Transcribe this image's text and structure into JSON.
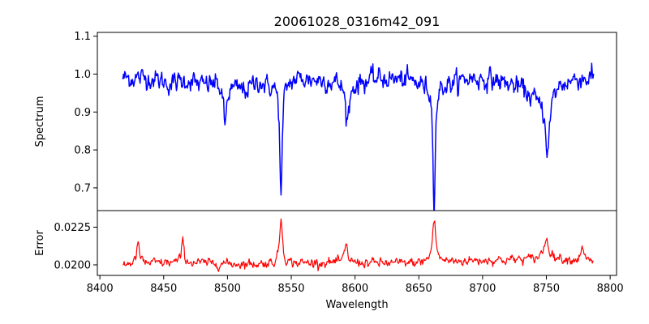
{
  "chart_data": {
    "type": "line",
    "title": "20061028_0316m42_091",
    "xlabel": "Wavelength",
    "x_ticks": [
      "8400",
      "8450",
      "8500",
      "8550",
      "8600",
      "8650",
      "8700",
      "8750",
      "8800"
    ],
    "xlim": [
      8398,
      8805
    ],
    "x_range": [
      8418,
      8787
    ],
    "grid": false,
    "panels": [
      {
        "name": "spectrum",
        "ylabel": "Spectrum",
        "ylim": [
          0.64,
          1.11
        ],
        "y_ticks": [
          "0.7",
          "0.8",
          "0.9",
          "1.0",
          "1.1"
        ],
        "color": "#0000ff",
        "noise": 0.022,
        "continuum": [
          [
            8418,
            0.99
          ],
          [
            8440,
            0.99
          ],
          [
            8455,
            0.975
          ],
          [
            8470,
            0.985
          ],
          [
            8480,
            0.97
          ],
          [
            8490,
            0.98
          ],
          [
            8505,
            0.965
          ],
          [
            8515,
            0.96
          ],
          [
            8525,
            0.985
          ],
          [
            8530,
            0.97
          ],
          [
            8555,
            0.99
          ],
          [
            8575,
            0.985
          ],
          [
            8600,
            0.98
          ],
          [
            8620,
            0.99
          ],
          [
            8640,
            0.985
          ],
          [
            8655,
            0.975
          ],
          [
            8672,
            0.975
          ],
          [
            8690,
            0.99
          ],
          [
            8710,
            0.985
          ],
          [
            8730,
            0.965
          ],
          [
            8745,
            0.93
          ],
          [
            8760,
            0.975
          ],
          [
            8775,
            0.99
          ],
          [
            8787,
            0.99
          ]
        ],
        "features": [
          {
            "center": 8498,
            "depth": 0.11,
            "width": 1.4
          },
          {
            "center": 8542,
            "depth": 0.31,
            "width": 1.1
          },
          {
            "center": 8594,
            "depth": 0.1,
            "width": 2.0
          },
          {
            "center": 8662,
            "depth": 0.31,
            "width": 1.1
          },
          {
            "center": 8751,
            "depth": 0.15,
            "width": 2.0
          }
        ]
      },
      {
        "name": "error",
        "ylabel": "Error",
        "ylim": [
          0.0193,
          0.0236
        ],
        "y_ticks": [
          "0.0200",
          "0.0225"
        ],
        "color": "#ff0000",
        "noise": 0.00025,
        "continuum": [
          [
            8418,
            0.02005
          ],
          [
            8460,
            0.02015
          ],
          [
            8520,
            0.02005
          ],
          [
            8580,
            0.02015
          ],
          [
            8640,
            0.0201
          ],
          [
            8700,
            0.0203
          ],
          [
            8760,
            0.0204
          ],
          [
            8787,
            0.0202
          ]
        ],
        "features": [
          {
            "center": 8430,
            "depth": -0.0014,
            "width": 1.2
          },
          {
            "center": 8465,
            "depth": -0.0015,
            "width": 1.1
          },
          {
            "center": 8542,
            "depth": -0.0031,
            "width": 1.3
          },
          {
            "center": 8593,
            "depth": -0.0011,
            "width": 1.5
          },
          {
            "center": 8662,
            "depth": -0.0028,
            "width": 1.6
          },
          {
            "center": 8750,
            "depth": -0.0013,
            "width": 2.5
          },
          {
            "center": 8778,
            "depth": -0.0012,
            "width": 1.0
          }
        ]
      }
    ]
  }
}
